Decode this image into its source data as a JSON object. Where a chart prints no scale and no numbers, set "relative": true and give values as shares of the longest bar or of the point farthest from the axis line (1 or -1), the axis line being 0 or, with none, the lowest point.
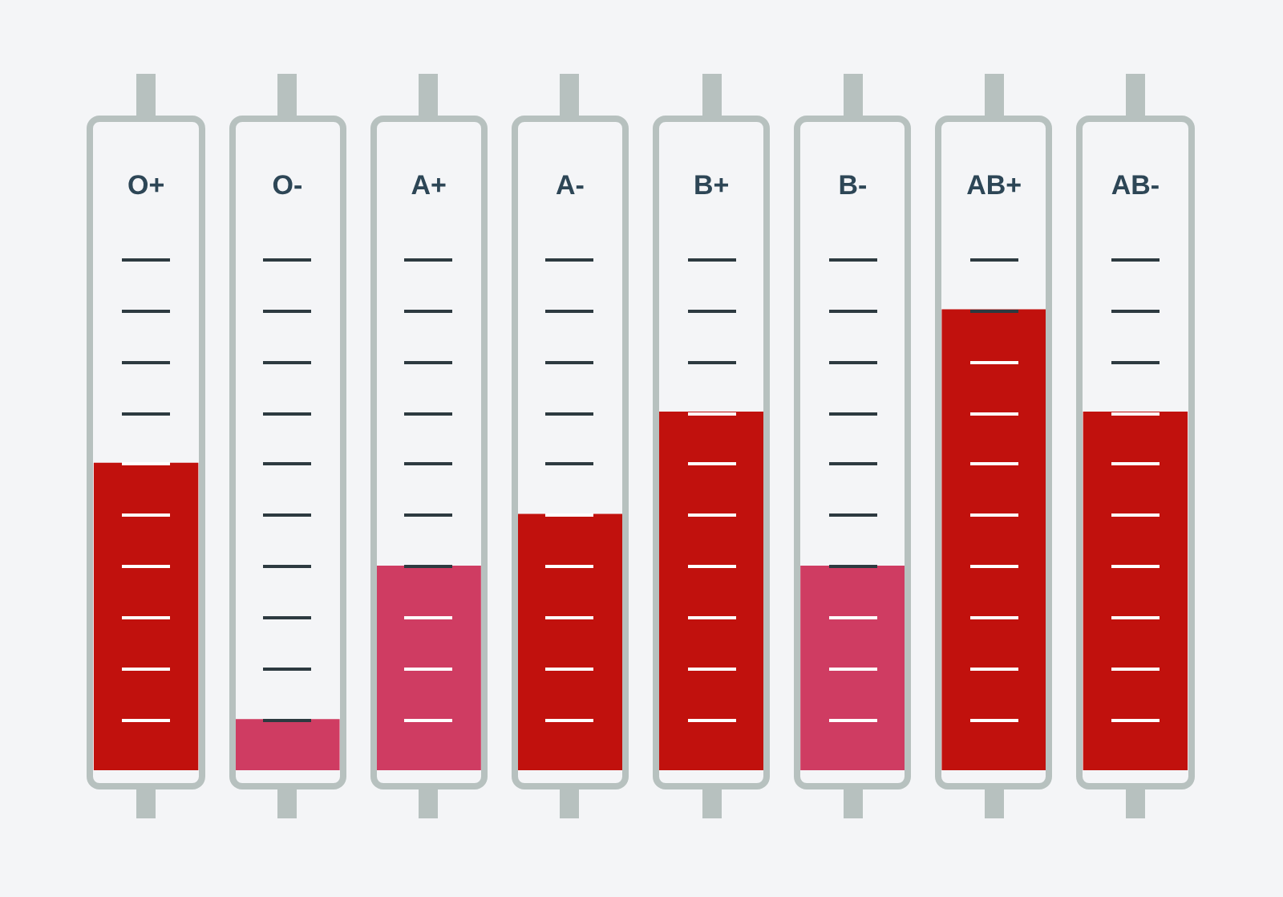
{
  "chart_data": {
    "type": "bar",
    "relative": true,
    "categories": [
      "O+",
      "O-",
      "A+",
      "A-",
      "B+",
      "B-",
      "AB+",
      "AB-"
    ],
    "values": [
      0.667,
      0.111,
      0.444,
      0.556,
      0.778,
      0.444,
      1,
      0.778
    ],
    "colors": [
      "#c1110d",
      "#cf3c62",
      "#cf3c62",
      "#c1110d",
      "#c1110d",
      "#cf3c62",
      "#c1110d",
      "#c1110d"
    ],
    "grid": false,
    "legend": false
  }
}
